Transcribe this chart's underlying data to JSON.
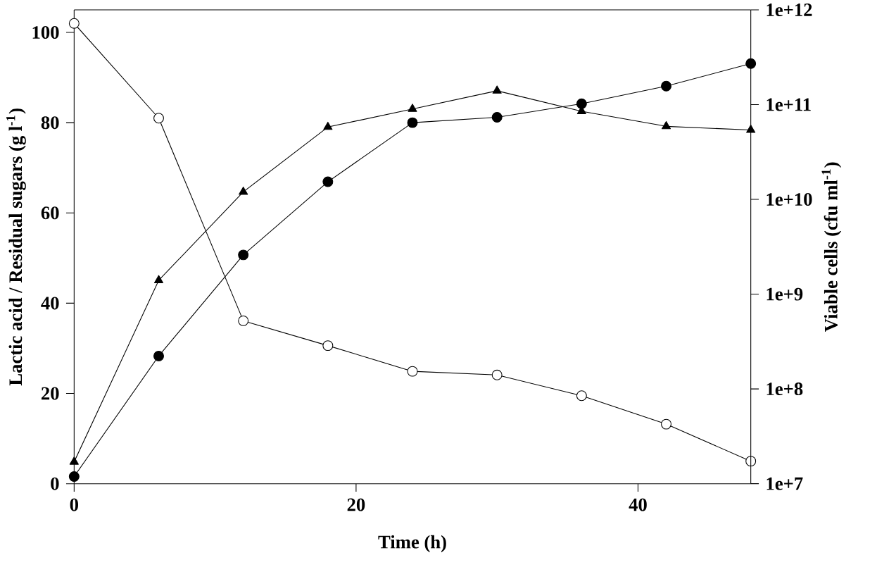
{
  "chart_data": {
    "type": "line",
    "xlabel": "Time (h)",
    "ylabel": "Lactic acid / Residual sugars (g l$^{-1}$)",
    "y2label": "Viable cells (cfu ml$^{-1}$)",
    "x": [
      0,
      6,
      12,
      18,
      24,
      30,
      36,
      42,
      48
    ],
    "xlim": [
      0,
      48
    ],
    "xticks": [
      0,
      20,
      40
    ],
    "ylim": [
      0,
      105
    ],
    "yticks": [
      0,
      20,
      40,
      60,
      80,
      100
    ],
    "y2lim": [
      10000000,
      1000000000000
    ],
    "log": "y2",
    "y2ticks": [
      {
        "value": 10000000,
        "label": "1e+7"
      },
      {
        "value": 100000000,
        "label": "1e+8"
      },
      {
        "value": 1000000000,
        "label": "1e+9"
      },
      {
        "value": 10000000000,
        "label": "1e+10"
      },
      {
        "value": 100000000000,
        "label": "1e+11"
      },
      {
        "value": 1000000000000,
        "label": "1e+12"
      }
    ],
    "line_style": "solid",
    "series": [
      {
        "color": "#000000",
        "marker": "circle",
        "values": [
          1.6,
          28.3,
          50.7,
          66.9,
          80,
          81.2,
          84.2,
          88.1,
          93.1
        ]
      },
      {
        "color": "#ffffff",
        "marker": "circle",
        "values": [
          102,
          81,
          36.1,
          30.6,
          24.9,
          24.1,
          19.5,
          13.2,
          5
        ]
      },
      {
        "color": "#000000",
        "marker": "triangle",
        "axis": "y2",
        "values": [
          17000000,
          1400000000,
          12000000000,
          58000000000,
          90000000000,
          140000000000,
          85000000000,
          59000000000,
          54000000000
        ]
      }
    ]
  }
}
